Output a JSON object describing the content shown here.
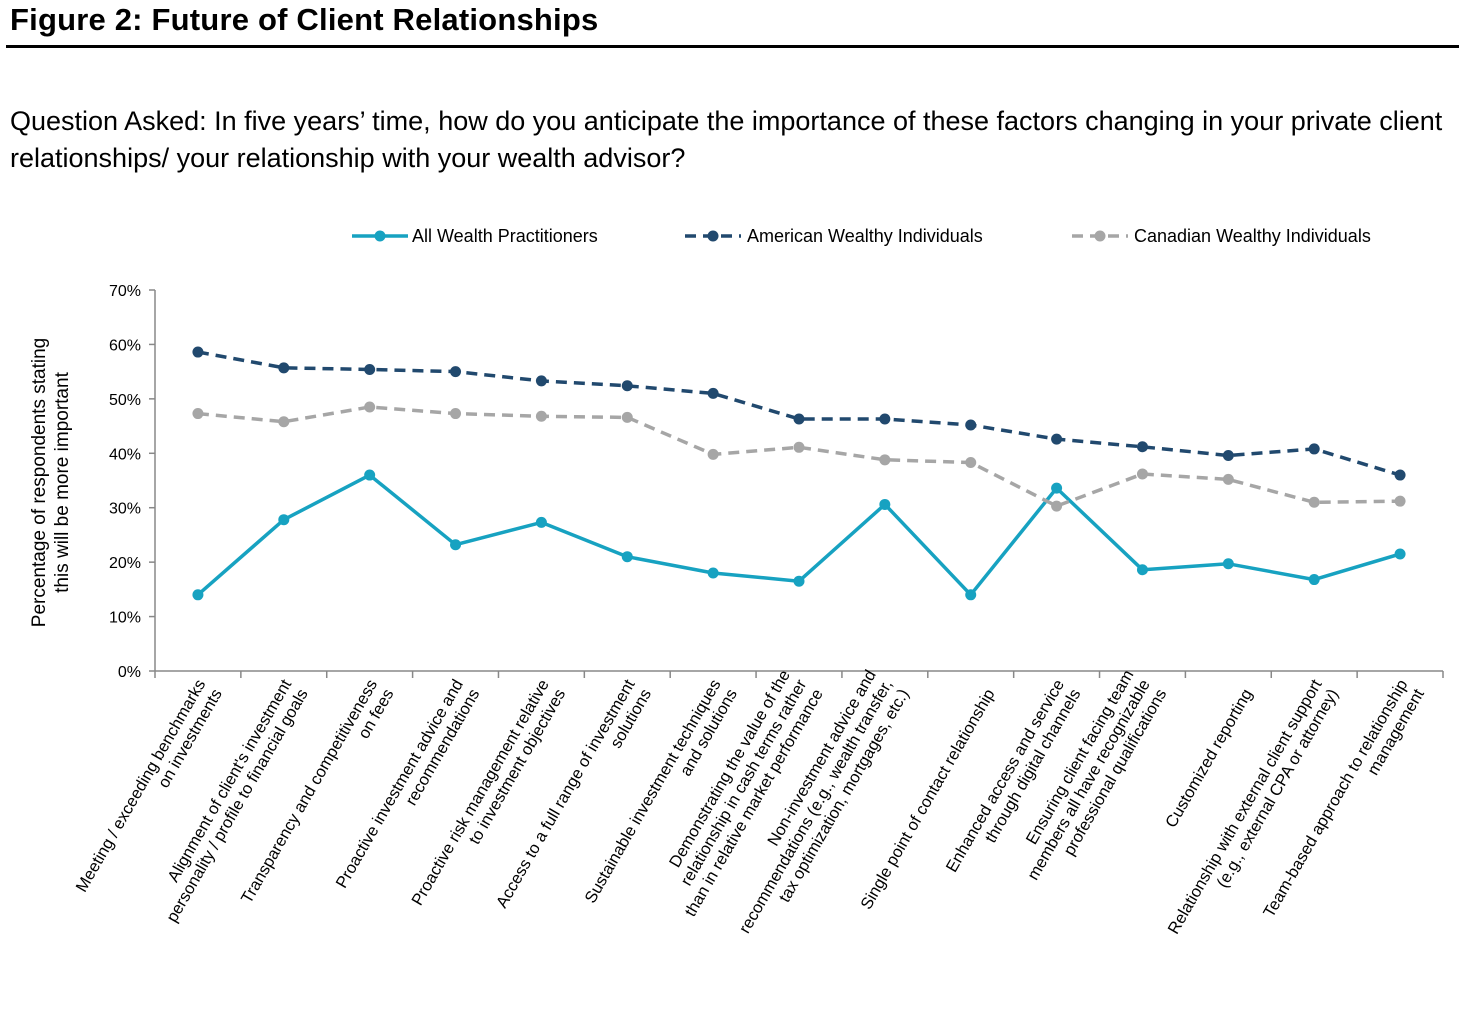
{
  "title": "Figure 2: Future of Client Relationships",
  "question": "Question Asked: In five years’ time, how do you anticipate the importance of these factors changing in your private client relationships/ your relationship with your wealth advisor?",
  "chart_data": {
    "type": "line",
    "ylabel_lines": [
      "Percentage of respondents stating",
      "this will be more important"
    ],
    "ylim": [
      0,
      70
    ],
    "yticks": [
      "0%",
      "10%",
      "20%",
      "30%",
      "40%",
      "50%",
      "60%",
      "70%"
    ],
    "legend_position": "top",
    "grid": false,
    "categories": [
      [
        "Meeting / exceeding benchmarks",
        "on investments"
      ],
      [
        "Alignment of client's investment",
        "personality / profile to financial goals"
      ],
      [
        "Transparency and competitiveness",
        "on fees"
      ],
      [
        "Proactive investment advice and",
        "recommendations"
      ],
      [
        "Proactive risk management relative",
        "to investment objectives"
      ],
      [
        "Access to a full range of investment",
        "solutions"
      ],
      [
        "Sustainable investment techniques",
        "and solutions"
      ],
      [
        "Demonstrating the value of the",
        "relationship in cash terms rather",
        "than in relative market performance"
      ],
      [
        "Non-investment advice and",
        "recommendations (e.g., wealth transfer,",
        "tax optimization, mortgages, etc.)"
      ],
      [
        "Single point of contact relationship"
      ],
      [
        "Enhanced access and service",
        "through digital channels"
      ],
      [
        "Ensuring client facing team",
        "members all have recognizable",
        "professional qualifications"
      ],
      [
        "Customized reporting"
      ],
      [
        "Relationship with external client support",
        "(e.g., external CPA or attorney)"
      ],
      [
        "Team-based approach to relationship",
        "management"
      ]
    ],
    "series": [
      {
        "name": "All Wealth Practitioners",
        "color": "#17a2c1",
        "dash": "solid",
        "values": [
          14,
          27.8,
          36,
          23.2,
          27.3,
          21,
          18,
          16.5,
          30.6,
          14,
          33.6,
          18.6,
          19.7,
          16.8,
          21.5
        ]
      },
      {
        "name": "American Wealthy Individuals",
        "color": "#21496e",
        "dash": "dashed",
        "values": [
          58.6,
          55.7,
          55.4,
          55,
          53.3,
          52.4,
          51,
          46.3,
          46.3,
          45.2,
          42.6,
          41.2,
          39.6,
          40.8,
          36
        ]
      },
      {
        "name": "Canadian Wealthy Individuals",
        "color": "#a6a6a6",
        "dash": "dashed",
        "values": [
          47.3,
          45.8,
          48.5,
          47.3,
          46.8,
          46.6,
          39.8,
          41.1,
          38.8,
          38.3,
          30.3,
          36.2,
          35.2,
          31,
          31.2
        ]
      }
    ]
  }
}
